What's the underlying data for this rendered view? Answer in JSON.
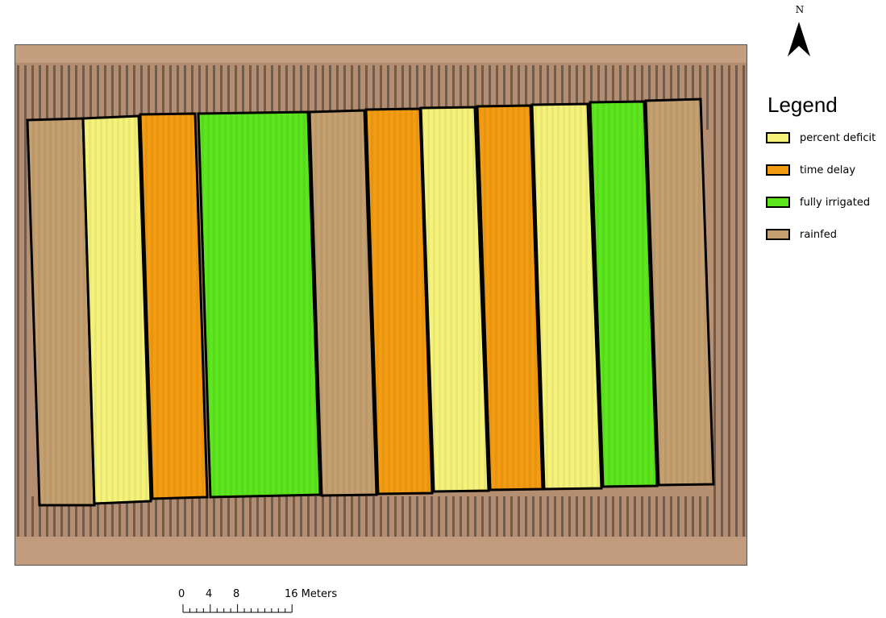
{
  "map": {
    "basemap": "aerial-imagery-orchard-rows",
    "plot_colors": {
      "percent_deficit": "#f5f27a",
      "time_delay": "#f39c12",
      "fully_irrigated": "#5de61e",
      "rainfed": "#c4a070"
    },
    "plots": [
      {
        "treatment": "rainfed"
      },
      {
        "treatment": "percent_deficit"
      },
      {
        "treatment": "time_delay"
      },
      {
        "treatment": "fully_irrigated"
      },
      {
        "treatment": "rainfed"
      },
      {
        "treatment": "time_delay"
      },
      {
        "treatment": "percent_deficit"
      },
      {
        "treatment": "time_delay"
      },
      {
        "treatment": "percent_deficit"
      },
      {
        "treatment": "fully_irrigated"
      },
      {
        "treatment": "rainfed"
      }
    ]
  },
  "north_arrow": {
    "letter": "N"
  },
  "legend": {
    "title": "Legend",
    "items": [
      {
        "label": "percent deficit",
        "color": "#f5f27a"
      },
      {
        "label": "time delay",
        "color": "#f39c12"
      },
      {
        "label": "fully irrigated",
        "color": "#5de61e"
      },
      {
        "label": "rainfed",
        "color": "#c4a070"
      }
    ]
  },
  "scale_bar": {
    "labels": [
      "0",
      "4",
      "8",
      "16 Meters"
    ],
    "values": [
      0,
      4,
      8,
      16
    ],
    "unit": "Meters"
  }
}
